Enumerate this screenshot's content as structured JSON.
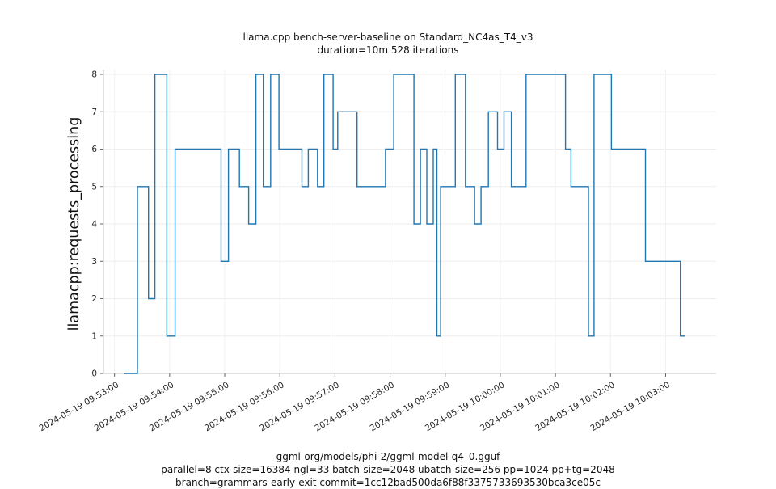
{
  "chart": {
    "title_line1": "llama.cpp bench-server-baseline on Standard_NC4as_T4_v3",
    "title_line2": "duration=10m 528 iterations",
    "caption_line1": "ggml-org/models/phi-2/ggml-model-q4_0.gguf",
    "caption_line2": "parallel=8 ctx-size=16384 ngl=33 batch-size=2048 ubatch-size=256 pp=1024 pp+tg=2048",
    "caption_line3": "branch=grammars-early-exit commit=1cc12bad500da6f88f3375733693530bca3ce05c"
  },
  "chart_data": {
    "type": "line",
    "step": true,
    "title": "llama.cpp bench-server-baseline on Standard_NC4as_T4_v3",
    "subtitle": "duration=10m 528 iterations",
    "ylabel": "llamacpp:requests_processing",
    "xlabel": "",
    "grid": true,
    "legend": "none",
    "line_color": "#1f77b4",
    "ylim": [
      0,
      8
    ],
    "y_ticks": [
      0,
      1,
      2,
      3,
      4,
      5,
      6,
      7,
      8
    ],
    "xlim_seconds": [
      -12,
      655
    ],
    "x_end_seconds": 621,
    "x_tick_seconds": [
      0,
      60,
      120,
      180,
      240,
      300,
      360,
      420,
      480,
      540,
      600
    ],
    "x_tick_labels": [
      "2024-05-19 09:53:00",
      "2024-05-19 09:54:00",
      "2024-05-19 09:55:00",
      "2024-05-19 09:56:00",
      "2024-05-19 09:57:00",
      "2024-05-19 09:58:00",
      "2024-05-19 09:59:00",
      "2024-05-19 10:00:00",
      "2024-05-19 10:01:00",
      "2024-05-19 10:02:00",
      "2024-05-19 10:03:00"
    ],
    "points_t_seconds_value": [
      [
        10,
        0
      ],
      [
        25,
        5
      ],
      [
        37,
        2
      ],
      [
        44,
        8
      ],
      [
        57,
        1
      ],
      [
        66,
        6
      ],
      [
        116,
        3
      ],
      [
        124,
        6
      ],
      [
        136,
        5
      ],
      [
        146,
        4
      ],
      [
        154,
        8
      ],
      [
        162,
        5
      ],
      [
        170,
        8
      ],
      [
        179,
        6
      ],
      [
        204,
        5
      ],
      [
        211,
        6
      ],
      [
        221,
        5
      ],
      [
        228,
        8
      ],
      [
        238,
        6
      ],
      [
        243,
        7
      ],
      [
        264,
        5
      ],
      [
        295,
        6
      ],
      [
        304,
        8
      ],
      [
        326,
        4
      ],
      [
        333,
        6
      ],
      [
        340,
        4
      ],
      [
        347,
        6
      ],
      [
        351,
        1
      ],
      [
        355,
        5
      ],
      [
        371,
        8
      ],
      [
        382,
        5
      ],
      [
        392,
        4
      ],
      [
        399,
        5
      ],
      [
        407,
        7
      ],
      [
        417,
        6
      ],
      [
        424,
        7
      ],
      [
        432,
        5
      ],
      [
        448,
        8
      ],
      [
        491,
        6
      ],
      [
        497,
        5
      ],
      [
        516,
        1
      ],
      [
        522,
        8
      ],
      [
        541,
        6
      ],
      [
        578,
        3
      ],
      [
        616,
        1
      ]
    ]
  }
}
